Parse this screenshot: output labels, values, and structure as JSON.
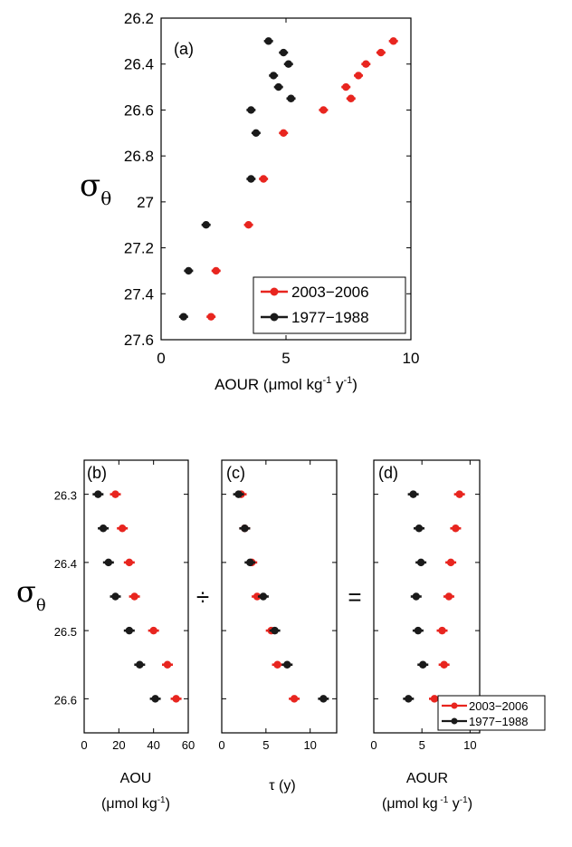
{
  "chart_data": [
    {
      "id": "a",
      "type": "scatter",
      "panel_label": "(a)",
      "xlabel": "AOUR (μmol kg",
      "xlabel_sup1": "-1",
      "xlabel_mid": " y",
      "xlabel_sup2": "-1",
      "xlabel_end": ")",
      "ylabel": "σ",
      "ylabel_sub": "θ",
      "xlim": [
        0,
        10
      ],
      "ylim": [
        26.2,
        27.6
      ],
      "y_inverted": true,
      "xticks": [
        "0",
        "5",
        "10"
      ],
      "yticks": [
        "26.2",
        "26.4",
        "26.6",
        "26.8",
        "27",
        "27.2",
        "27.4",
        "27.6"
      ],
      "legend": {
        "placement": "bottom-right",
        "entries": [
          "2003−2006",
          "1977−1988"
        ]
      },
      "series": [
        {
          "name": "2003−2006",
          "color": "#e8251f",
          "points": [
            [
              9.3,
              26.3
            ],
            [
              8.8,
              26.35
            ],
            [
              8.2,
              26.4
            ],
            [
              7.9,
              26.45
            ],
            [
              7.4,
              26.5
            ],
            [
              7.6,
              26.55
            ],
            [
              6.5,
              26.6
            ],
            [
              4.9,
              26.7
            ],
            [
              4.1,
              26.9
            ],
            [
              3.5,
              27.1
            ],
            [
              2.2,
              27.3
            ],
            [
              2.0,
              27.5
            ]
          ]
        },
        {
          "name": "1977−1988",
          "color": "#1a1a1a",
          "points": [
            [
              4.3,
              26.3
            ],
            [
              4.9,
              26.35
            ],
            [
              5.1,
              26.4
            ],
            [
              4.5,
              26.45
            ],
            [
              4.7,
              26.5
            ],
            [
              5.2,
              26.55
            ],
            [
              3.6,
              26.6
            ],
            [
              3.8,
              26.7
            ],
            [
              3.6,
              26.9
            ],
            [
              1.8,
              27.1
            ],
            [
              1.1,
              27.3
            ],
            [
              0.9,
              27.5
            ]
          ]
        }
      ]
    },
    {
      "id": "b",
      "type": "scatter",
      "panel_label": "(b)",
      "xlabel": "AOU",
      "xlabel2": "(μmol kg",
      "xlabel2_sup": "-1",
      "xlabel2_end": ")",
      "ylabel": "σ",
      "ylabel_sub": "θ",
      "xlim": [
        0,
        60
      ],
      "ylim": [
        26.25,
        26.65
      ],
      "y_inverted": true,
      "xticks": [
        "0",
        "20",
        "40",
        "60"
      ],
      "yticks": [
        "26.3",
        "26.4",
        "26.5",
        "26.6"
      ],
      "series": [
        {
          "name": "2003−2006",
          "color": "#e8251f",
          "points": [
            [
              18,
              26.3
            ],
            [
              22,
              26.35
            ],
            [
              26,
              26.4
            ],
            [
              29,
              26.45
            ],
            [
              40,
              26.5
            ],
            [
              48,
              26.55
            ],
            [
              53,
              26.6
            ]
          ]
        },
        {
          "name": "1977−1988",
          "color": "#1a1a1a",
          "points": [
            [
              8,
              26.3
            ],
            [
              11,
              26.35
            ],
            [
              14,
              26.4
            ],
            [
              18,
              26.45
            ],
            [
              26,
              26.5
            ],
            [
              32,
              26.55
            ],
            [
              41,
              26.6
            ]
          ]
        }
      ]
    },
    {
      "id": "c",
      "type": "scatter",
      "panel_label": "(c)",
      "xlabel": "τ (y)",
      "xlim": [
        0,
        13
      ],
      "ylim": [
        26.25,
        26.65
      ],
      "y_inverted": true,
      "xticks": [
        "0",
        "5",
        "10"
      ],
      "series": [
        {
          "name": "2003−2006",
          "color": "#e8251f",
          "points": [
            [
              2.2,
              26.3
            ],
            [
              2.6,
              26.35
            ],
            [
              3.4,
              26.4
            ],
            [
              4.0,
              26.45
            ],
            [
              5.6,
              26.5
            ],
            [
              6.3,
              26.55
            ],
            [
              8.2,
              26.6
            ]
          ]
        },
        {
          "name": "1977−1988",
          "color": "#1a1a1a",
          "points": [
            [
              1.9,
              26.3
            ],
            [
              2.6,
              26.35
            ],
            [
              3.2,
              26.4
            ],
            [
              4.7,
              26.45
            ],
            [
              6.0,
              26.5
            ],
            [
              7.4,
              26.55
            ],
            [
              11.5,
              26.6
            ]
          ]
        }
      ]
    },
    {
      "id": "d",
      "type": "scatter",
      "panel_label": "(d)",
      "xlabel": "AOUR",
      "xlabel2": "(μmol kg",
      "xlabel2_sup": " -1",
      "xlabel2_mid": " y",
      "xlabel2_sup2": "-1",
      "xlabel2_end": ")",
      "xlim": [
        0,
        11
      ],
      "ylim": [
        26.25,
        26.65
      ],
      "y_inverted": true,
      "xticks": [
        "0",
        "5",
        "10"
      ],
      "legend": {
        "placement": "bottom-right",
        "entries": [
          "2003−2006",
          "1977−1988"
        ]
      },
      "series": [
        {
          "name": "2003−2006",
          "color": "#e8251f",
          "points": [
            [
              8.9,
              26.3
            ],
            [
              8.5,
              26.35
            ],
            [
              8.0,
              26.4
            ],
            [
              7.8,
              26.45
            ],
            [
              7.1,
              26.5
            ],
            [
              7.3,
              26.55
            ],
            [
              6.3,
              26.6
            ]
          ]
        },
        {
          "name": "1977−1988",
          "color": "#1a1a1a",
          "points": [
            [
              4.1,
              26.3
            ],
            [
              4.7,
              26.35
            ],
            [
              4.9,
              26.4
            ],
            [
              4.4,
              26.45
            ],
            [
              4.6,
              26.5
            ],
            [
              5.1,
              26.55
            ],
            [
              3.6,
              26.6
            ]
          ]
        }
      ]
    }
  ],
  "operators": {
    "divide": "÷",
    "equals": "="
  }
}
